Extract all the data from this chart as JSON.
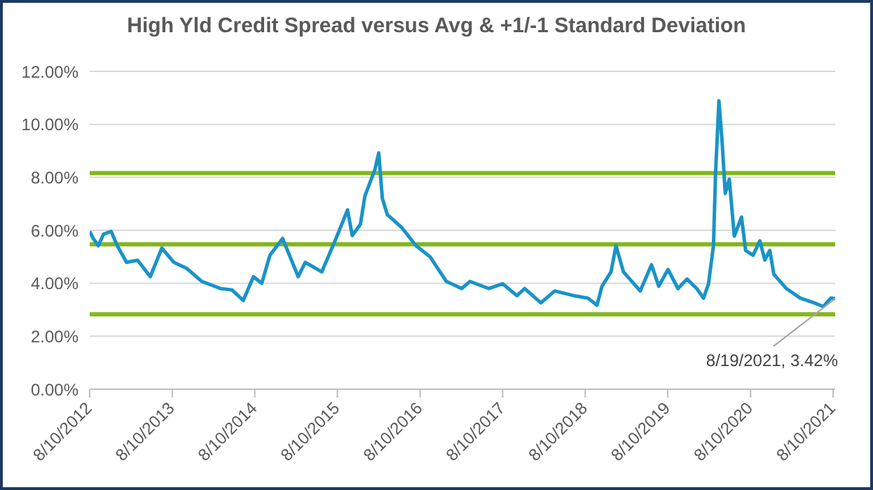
{
  "chart_data": {
    "type": "line",
    "title": "High Yld Credit Spread versus Avg & +1/-1 Standard Deviation",
    "x": [
      "2012-08-10",
      "2012-08-25",
      "2012-09-17",
      "2012-10-10",
      "2012-11-13",
      "2012-12-10",
      "2013-01-20",
      "2013-03-10",
      "2013-05-05",
      "2013-06-25",
      "2013-08-16",
      "2013-10-15",
      "2013-12-19",
      "2014-03-12",
      "2014-05-01",
      "2014-06-20",
      "2014-08-04",
      "2014-09-10",
      "2014-10-16",
      "2014-12-11",
      "2015-02-18",
      "2015-03-21",
      "2015-06-02",
      "2015-08-04",
      "2015-09-24",
      "2015-10-15",
      "2015-11-20",
      "2015-12-10",
      "2016-01-23",
      "2016-02-09",
      "2016-02-25",
      "2016-03-18",
      "2016-05-21",
      "2016-07-23",
      "2016-09-23",
      "2016-12-04",
      "2017-02-10",
      "2017-03-18",
      "2017-06-10",
      "2017-08-10",
      "2017-10-12",
      "2017-11-15",
      "2018-01-26",
      "2018-03-28",
      "2018-06-21",
      "2018-08-22",
      "2018-10-01",
      "2018-10-23",
      "2018-12-02",
      "2018-12-24",
      "2019-01-26",
      "2019-04-10",
      "2019-05-30",
      "2019-07-01",
      "2019-08-11",
      "2019-09-24",
      "2019-11-03",
      "2019-12-16",
      "2020-01-15",
      "2020-02-06",
      "2020-02-28",
      "2020-03-08",
      "2020-03-23",
      "2020-04-06",
      "2020-04-20",
      "2020-05-08",
      "2020-05-30",
      "2020-07-01",
      "2020-07-19",
      "2020-08-21",
      "2020-09-20",
      "2020-10-12",
      "2020-11-03",
      "2020-11-21",
      "2021-01-15",
      "2021-03-18",
      "2021-05-18",
      "2021-06-28",
      "2021-07-31",
      "2021-08-19"
    ],
    "series": [
      {
        "color": "#1a93c7",
        "values": [
          5.96,
          5.7,
          5.42,
          5.85,
          5.96,
          5.42,
          4.79,
          4.87,
          4.25,
          5.33,
          4.8,
          4.55,
          4.07,
          3.8,
          3.75,
          3.35,
          4.25,
          4.0,
          5.06,
          5.69,
          4.25,
          4.79,
          4.43,
          5.69,
          6.77,
          5.8,
          6.23,
          7.3,
          8.29,
          8.92,
          7.2,
          6.59,
          6.1,
          5.42,
          5.0,
          4.07,
          3.8,
          4.07,
          3.8,
          3.98,
          3.53,
          3.8,
          3.26,
          3.71,
          3.53,
          3.44,
          3.17,
          3.89,
          4.43,
          5.42,
          4.43,
          3.71,
          4.7,
          3.89,
          4.52,
          3.8,
          4.16,
          3.8,
          3.44,
          3.98,
          5.42,
          8.11,
          10.89,
          9.37,
          7.39,
          7.93,
          5.78,
          6.5,
          5.24,
          5.06,
          5.6,
          4.88,
          5.24,
          4.34,
          3.8,
          3.44,
          3.26,
          3.12,
          3.44,
          3.42
        ]
      }
    ],
    "xlim": [
      "2012-08-10",
      "2021-08-19"
    ],
    "xticks": [
      {
        "value": "2012-08-10",
        "label": "8/10/2012"
      },
      {
        "value": "2013-08-10",
        "label": "8/10/2013"
      },
      {
        "value": "2014-08-10",
        "label": "8/10/2014"
      },
      {
        "value": "2015-08-10",
        "label": "8/10/2015"
      },
      {
        "value": "2016-08-10",
        "label": "8/10/2016"
      },
      {
        "value": "2017-08-10",
        "label": "8/10/2017"
      },
      {
        "value": "2018-08-10",
        "label": "8/10/2018"
      },
      {
        "value": "2019-08-10",
        "label": "8/10/2019"
      },
      {
        "value": "2020-08-10",
        "label": "8/10/2020"
      },
      {
        "value": "2021-08-10",
        "label": "8/10/2021"
      }
    ],
    "ylim": [
      0,
      12
    ],
    "yticks": [
      {
        "value": 0,
        "label": "0.00%"
      },
      {
        "value": 2,
        "label": "2.00%"
      },
      {
        "value": 4,
        "label": "4.00%"
      },
      {
        "value": 6,
        "label": "6.00%"
      },
      {
        "value": 8,
        "label": "8.00%"
      },
      {
        "value": 10,
        "label": "10.00%"
      },
      {
        "value": 12,
        "label": "12.00%"
      }
    ],
    "ref_lines": [
      {
        "axis": "y",
        "value": 8.16,
        "color": "#84b81c"
      },
      {
        "axis": "y",
        "value": 5.47,
        "color": "#84b81c"
      },
      {
        "axis": "y",
        "value": 2.83,
        "color": "#84b81c"
      }
    ],
    "annotations": [
      {
        "text": "8/19/2021, 3.42%",
        "x": "2021-08-19",
        "y": 3.42
      }
    ],
    "grid": "y",
    "marker": "none",
    "line_style": "solid"
  }
}
